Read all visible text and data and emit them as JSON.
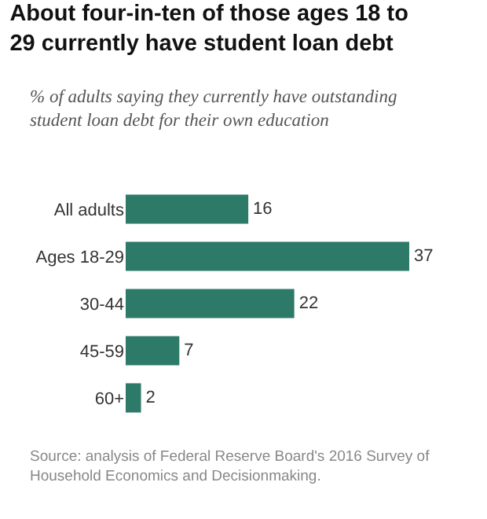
{
  "chart_data": {
    "type": "bar",
    "orientation": "horizontal",
    "title": "About four-in-ten of those ages 18 to 29 currently have student loan debt",
    "subtitle": "% of adults saying they currently have outstanding student loan debt for their own education",
    "categories": [
      "All adults",
      "Ages 18-29",
      "30-44",
      "45-59",
      "60+"
    ],
    "values": [
      16,
      37,
      22,
      7,
      2
    ],
    "color": "#2e7a68",
    "data_labels": true,
    "annotations": [
      "Source: analysis of Federal Reserve Board's 2016 Survey of Household Economics and Decisionmaking."
    ]
  }
}
